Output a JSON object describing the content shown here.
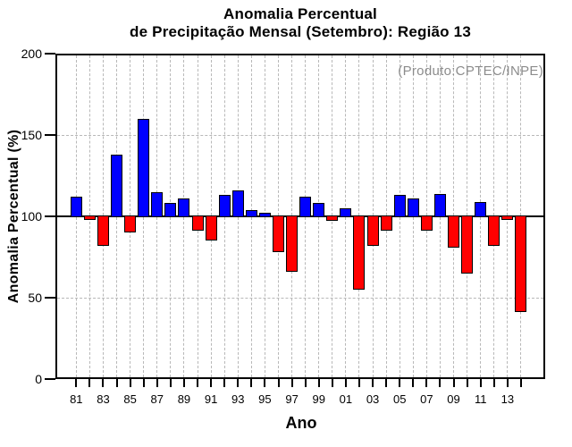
{
  "title": {
    "line1": "Anomalia Percentual",
    "line2": "de Precipitação Mensal (Setembro): Região 13"
  },
  "annotation": {
    "text": "(Produto:CPTEC/INPE)"
  },
  "axes": {
    "y_label": "Anomalia Percentual (%)",
    "x_label": "Ano",
    "y_ticks": [
      0,
      50,
      100,
      150,
      200
    ],
    "y_gridlines": [
      50,
      150
    ],
    "x_tick_labels": [
      "81",
      "83",
      "85",
      "87",
      "89",
      "91",
      "93",
      "95",
      "97",
      "99",
      "01",
      "03",
      "05",
      "07",
      "09",
      "11",
      "13"
    ]
  },
  "chart_data": {
    "type": "bar",
    "title": "Anomalia Percentual de Precipitação Mensal (Setembro): Região 13",
    "xlabel": "Ano",
    "ylabel": "Anomalia Percentual (%)",
    "ylim": [
      0,
      200
    ],
    "baseline": 100,
    "grid": "on",
    "categories": [
      "81",
      "82",
      "83",
      "84",
      "85",
      "86",
      "87",
      "88",
      "89",
      "90",
      "91",
      "92",
      "93",
      "94",
      "95",
      "96",
      "97",
      "98",
      "99",
      "00",
      "01",
      "02",
      "03",
      "04",
      "05",
      "06",
      "07",
      "08",
      "09",
      "10",
      "11",
      "12",
      "13",
      "14"
    ],
    "values": [
      112,
      98,
      82,
      138,
      90,
      160,
      115,
      108,
      111,
      91,
      85,
      113,
      116,
      104,
      102,
      78,
      66,
      112,
      108,
      97,
      105,
      55,
      82,
      91,
      113,
      111,
      91,
      114,
      81,
      65,
      109,
      82,
      98,
      41
    ],
    "colors": {
      "above_baseline": "#0000ff",
      "below_baseline": "#ff0000",
      "outline": "#000000",
      "grid": "#b8b8b8",
      "annotation": "#8c8c8c"
    }
  }
}
